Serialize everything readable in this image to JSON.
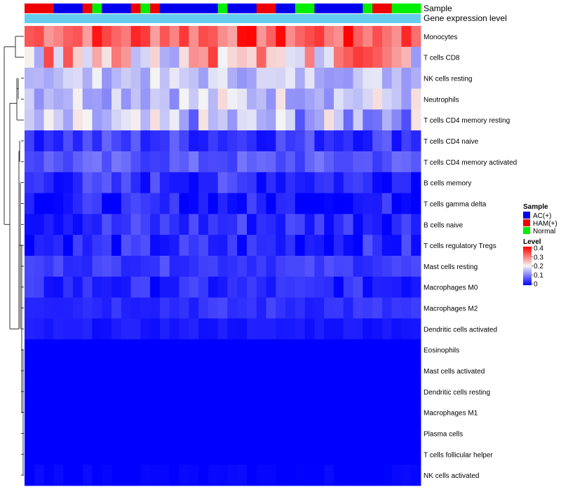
{
  "chart_data": {
    "type": "heatmap",
    "title": "",
    "annotation_rows": [
      {
        "label": "Sample",
        "kind": "categorical"
      },
      {
        "label": "Gene expression level",
        "kind": "constant"
      }
    ],
    "sample_groups": [
      "HAM",
      "HAM",
      "HAM",
      "AC",
      "AC",
      "AC",
      "HAM",
      "Normal",
      "AC",
      "AC",
      "AC",
      "HAM",
      "Normal",
      "HAM",
      "AC",
      "AC",
      "AC",
      "AC",
      "AC",
      "AC",
      "Normal",
      "AC",
      "AC",
      "AC",
      "HAM",
      "HAM",
      "AC",
      "AC",
      "Normal",
      "Normal",
      "AC",
      "AC",
      "AC",
      "AC",
      "AC",
      "Normal",
      "HAM",
      "HAM",
      "Normal",
      "Normal",
      "Normal"
    ],
    "legend_sample": {
      "title": "Sample",
      "entries": [
        {
          "key": "AC",
          "label": "AC(+)",
          "color": "#0000ee"
        },
        {
          "key": "HAM",
          "label": "HAM(+)",
          "color": "#ee0000"
        },
        {
          "key": "Normal",
          "label": "Normal",
          "color": "#00ee00"
        }
      ]
    },
    "legend_level": {
      "title": "Level",
      "ticks": [
        "0.4",
        "0.3",
        "0.2",
        "0.1",
        "0"
      ],
      "range": [
        0,
        0.4
      ],
      "colors": {
        "low": "#0000ff",
        "mid": "#f5f5f5",
        "high": "#ff0000"
      }
    },
    "expression_bar_color": "#66ccee",
    "rows": [
      {
        "label": "Monocytes",
        "base": 0.33,
        "var": 0.07
      },
      {
        "label": "T cells CD8",
        "base": 0.24,
        "var": 0.12
      },
      {
        "label": "NK cells resting",
        "base": 0.16,
        "var": 0.04
      },
      {
        "label": "Neutrophils",
        "base": 0.17,
        "var": 0.06
      },
      {
        "label": "T cells CD4 memory resting",
        "base": 0.14,
        "var": 0.08
      },
      {
        "label": "T cells CD4 naive",
        "base": 0.05,
        "var": 0.04
      },
      {
        "label": "T cells CD4 memory activated",
        "base": 0.07,
        "var": 0.03
      },
      {
        "label": "B cells memory",
        "base": 0.04,
        "var": 0.04
      },
      {
        "label": "T cells gamma delta",
        "base": 0.02,
        "var": 0.04
      },
      {
        "label": "B cells naive",
        "base": 0.04,
        "var": 0.04
      },
      {
        "label": "T cells regulatory  Tregs",
        "base": 0.03,
        "var": 0.04
      },
      {
        "label": "Mast cells resting",
        "base": 0.05,
        "var": 0.02
      },
      {
        "label": "Macrophages M0",
        "base": 0.03,
        "var": 0.03
      },
      {
        "label": "Macrophages M2",
        "base": 0.04,
        "var": 0.02
      },
      {
        "label": "Dendritic cells activated",
        "base": 0.02,
        "var": 0.01
      },
      {
        "label": "Eosinophils",
        "base": 0.0,
        "var": 0.0
      },
      {
        "label": "Mast cells activated",
        "base": 0.0,
        "var": 0.0
      },
      {
        "label": "Dendritic cells resting",
        "base": 0.0,
        "var": 0.0
      },
      {
        "label": "Macrophages M1",
        "base": 0.0,
        "var": 0.0
      },
      {
        "label": "Plasma cells",
        "base": 0.0,
        "var": 0.0
      },
      {
        "label": "T cells follicular helper",
        "base": 0.0,
        "var": 0.0
      },
      {
        "label": "NK cells activated",
        "base": 0.0,
        "var": 0.01
      }
    ]
  }
}
